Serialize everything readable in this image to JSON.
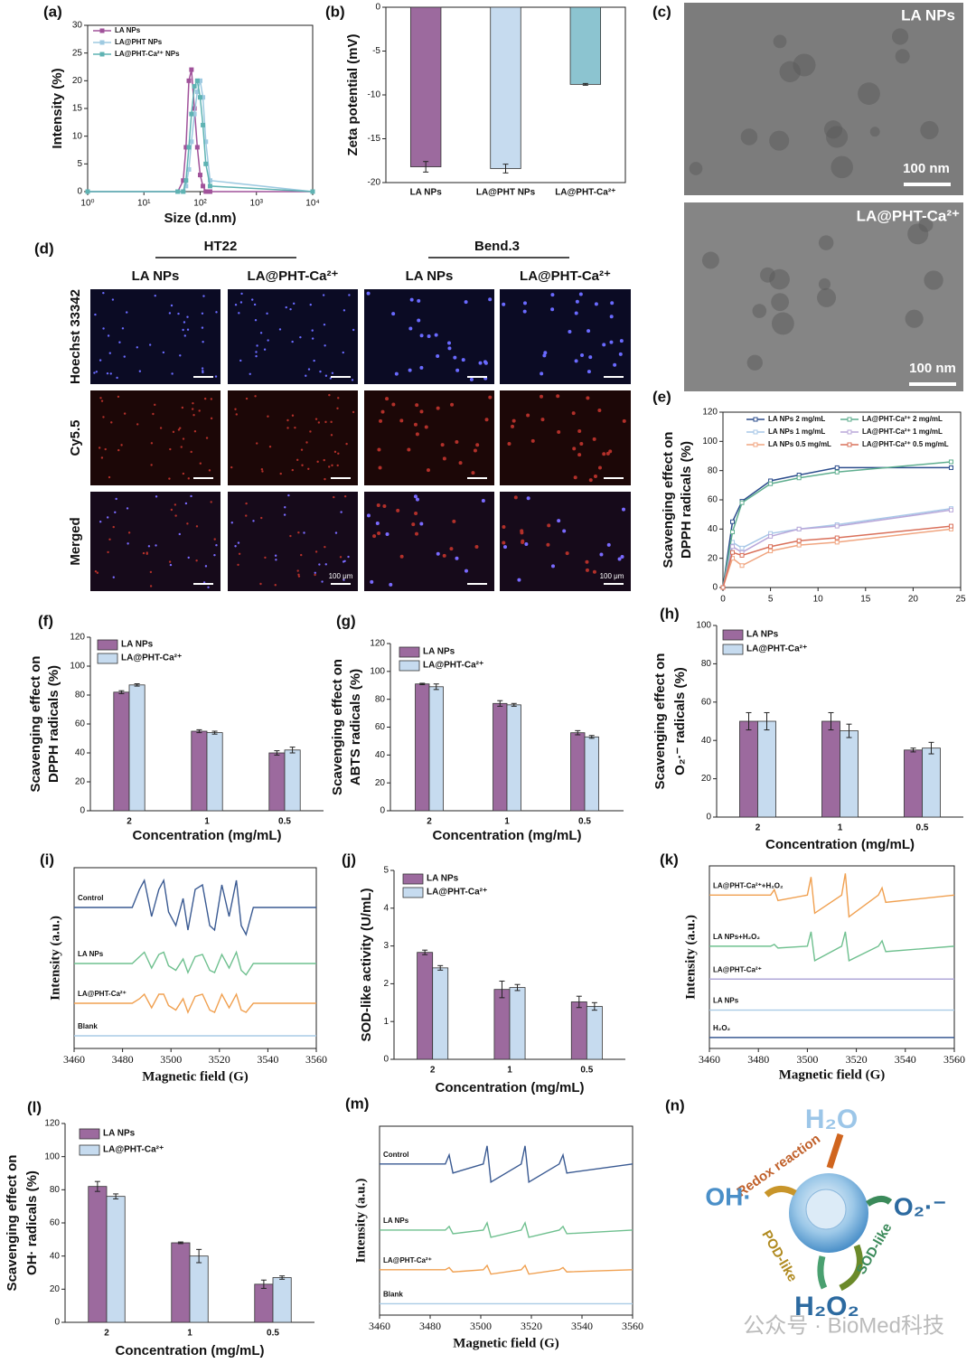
{
  "chart_data": [
    {
      "panel": "(a)",
      "type": "line",
      "xlabel": "Size (d.nm)",
      "ylabel": [
        "Intensity (%)"
      ],
      "xlog": true,
      "xlim": [
        1,
        10000
      ],
      "xticks": [
        {
          "value": 1,
          "label": "10⁰"
        },
        {
          "value": 10,
          "label": "10¹"
        },
        {
          "value": 100,
          "label": "10²"
        },
        {
          "value": 1000,
          "label": "10³"
        },
        {
          "value": 10000,
          "label": "10⁴"
        }
      ],
      "ylim": [
        0,
        30
      ],
      "yticks": [
        0,
        5,
        10,
        15,
        20,
        25,
        30
      ],
      "x": [
        1,
        40,
        50,
        56,
        63,
        70,
        79,
        89,
        100,
        112,
        126,
        150,
        10000
      ],
      "series": [
        {
          "name": "LA NPs",
          "color": "#a0529a",
          "values": [
            0,
            0,
            2,
            8,
            20,
            22,
            15,
            8,
            3,
            1,
            0,
            0,
            0
          ]
        },
        {
          "name": "LA@PHT NPs",
          "color": "#9ecae1",
          "values": [
            0,
            0,
            0,
            1,
            4,
            9,
            14,
            18,
            20,
            17,
            9,
            2,
            0
          ]
        },
        {
          "name": "LA@PHT-Ca²⁺ NPs",
          "color": "#5fb3b3",
          "values": [
            0,
            0,
            0,
            2,
            8,
            14,
            19,
            20,
            17,
            12,
            5,
            1,
            0
          ]
        }
      ]
    },
    {
      "panel": "(b)",
      "type": "bar",
      "ylabel": [
        "Zeta potential (mV)"
      ],
      "categories": [
        "LA NPs",
        "LA@PHT NPs",
        "LA@PHT-Ca²⁺"
      ],
      "values": [
        -18.2,
        -18.4,
        -8.8
      ],
      "errors": [
        0.6,
        0.5,
        0.1
      ],
      "colors": [
        "#9c6a9e",
        "#c6dbef",
        "#8cc4d0"
      ],
      "ylim": [
        -20,
        0
      ],
      "yticks": [
        0,
        -5,
        -10,
        -15,
        -20
      ]
    },
    {
      "panel": "(e)",
      "type": "line",
      "ylabel": [
        "Scavenging effect on",
        "DPPH radicals (%)"
      ],
      "xlim": [
        0,
        25
      ],
      "xticks": [
        0,
        5,
        10,
        15,
        20,
        25
      ],
      "ylim": [
        0,
        120
      ],
      "yticks": [
        0,
        20,
        40,
        60,
        80,
        100,
        120
      ],
      "x": [
        0,
        1,
        2,
        5,
        8,
        12,
        24
      ],
      "series": [
        {
          "name": "LA NPs 2 mg/mL",
          "color": "#2b4c8c",
          "values": [
            0,
            45,
            59,
            73,
            77,
            82,
            82
          ]
        },
        {
          "name": "LA NPs 1 mg/mL",
          "color": "#a7c7e7",
          "values": [
            0,
            31,
            27,
            37,
            40,
            43,
            54
          ]
        },
        {
          "name": "LA NPs 0.5 mg/mL",
          "color": "#f0a580",
          "values": [
            0,
            20,
            15,
            25,
            29,
            31,
            40
          ]
        },
        {
          "name": "LA@PHT-Ca²⁺ 2 mg/mL",
          "color": "#5fae8f",
          "values": [
            0,
            38,
            58,
            71,
            75,
            79,
            86
          ]
        },
        {
          "name": "LA@PHT-Ca²⁺ 1 mg/mL",
          "color": "#b9a7d9",
          "values": [
            0,
            28,
            24,
            35,
            40,
            42,
            53
          ]
        },
        {
          "name": "LA@PHT-Ca²⁺ 0.5 mg/mL",
          "color": "#d9705a",
          "values": [
            0,
            24,
            22,
            28,
            32,
            34,
            42
          ]
        }
      ]
    },
    {
      "panel": "(f)",
      "type": "bar",
      "xlabel": "Concentration (mg/mL)",
      "ylabel": [
        "Scavenging effect on",
        "DPPH radicals (%)"
      ],
      "categories": [
        "2",
        "1",
        "0.5"
      ],
      "ylim": [
        0,
        120
      ],
      "yticks": [
        0,
        20,
        40,
        60,
        80,
        100,
        120
      ],
      "series": [
        {
          "name": "LA NPs",
          "color": "#9c6a9e",
          "values": [
            82,
            55,
            40
          ],
          "errors": [
            1,
            1,
            1.5
          ]
        },
        {
          "name": "LA@PHT-Ca²⁺",
          "color": "#c6dbef",
          "values": [
            87,
            54,
            42
          ],
          "errors": [
            0.8,
            1,
            2
          ]
        }
      ]
    },
    {
      "panel": "(g)",
      "type": "bar",
      "xlabel": "Concentration (mg/mL)",
      "ylabel": [
        "Scavenging effect on",
        "ABTS radicals (%)"
      ],
      "categories": [
        "2",
        "1",
        "0.5"
      ],
      "ylim": [
        0,
        120
      ],
      "yticks": [
        0,
        20,
        40,
        60,
        80,
        100,
        120
      ],
      "series": [
        {
          "name": "LA NPs",
          "color": "#9c6a9e",
          "values": [
            91,
            77,
            56
          ],
          "errors": [
            0.5,
            2,
            1.5
          ]
        },
        {
          "name": "LA@PHT-Ca²⁺",
          "color": "#c6dbef",
          "values": [
            89,
            76,
            53
          ],
          "errors": [
            2,
            1,
            1
          ]
        }
      ]
    },
    {
      "panel": "(h)",
      "type": "bar",
      "xlabel": "Concentration (mg/mL)",
      "ylabel": [
        "Scavenging effect on",
        "O₂·⁻ radicals (%)"
      ],
      "categories": [
        "2",
        "1",
        "0.5"
      ],
      "ylim": [
        0,
        100
      ],
      "yticks": [
        0,
        20,
        40,
        60,
        80,
        100
      ],
      "series": [
        {
          "name": "LA NPs",
          "color": "#9c6a9e",
          "values": [
            50,
            50,
            35
          ],
          "errors": [
            4.5,
            4.5,
            1
          ]
        },
        {
          "name": "LA@PHT-Ca²⁺",
          "color": "#c6dbef",
          "values": [
            50,
            45,
            36
          ],
          "errors": [
            4.5,
            3.5,
            3
          ]
        }
      ]
    },
    {
      "panel": "(i)",
      "type": "spectrum",
      "xlabel": "Magnetic field (G)",
      "ylabel": [
        "Intensity (a.u.)"
      ],
      "xlim": [
        3460,
        3560
      ],
      "xticks": [
        3460,
        3480,
        3500,
        3520,
        3540,
        3560
      ],
      "series": [
        {
          "name": "Control",
          "color": "#3a5a92",
          "x": [
            3460,
            3484,
            3487,
            3489,
            3492,
            3495,
            3497,
            3499,
            3502,
            3505,
            3507,
            3510,
            3513,
            3516,
            3518,
            3521,
            3524,
            3527,
            3529,
            3531,
            3534,
            3560
          ],
          "values": [
            0,
            0,
            4,
            6,
            -2,
            4,
            6,
            -1,
            -4,
            2,
            -5,
            4,
            5,
            -4,
            -5,
            5,
            -2,
            6,
            -4,
            -6,
            0,
            0
          ]
        },
        {
          "name": "LA NPs",
          "color": "#6fc08f",
          "x": [
            3460,
            3484,
            3487,
            3489,
            3492,
            3495,
            3497,
            3499,
            3502,
            3505,
            3507,
            3510,
            3513,
            3516,
            3518,
            3521,
            3524,
            3527,
            3529,
            3531,
            3534,
            3560
          ],
          "values": [
            0,
            0,
            1.5,
            2.5,
            -1,
            2,
            2.5,
            -0.5,
            -1.5,
            1,
            -2,
            1.5,
            2,
            -1.5,
            -2,
            2,
            -1,
            2.5,
            -1.5,
            -2.5,
            0,
            0
          ]
        },
        {
          "name": "LA@PHT-Ca²⁺",
          "color": "#f0a050",
          "x": [
            3460,
            3484,
            3487,
            3489,
            3492,
            3495,
            3497,
            3499,
            3502,
            3505,
            3507,
            3510,
            3513,
            3516,
            3518,
            3521,
            3524,
            3527,
            3529,
            3531,
            3534,
            3560
          ],
          "values": [
            0,
            0,
            1,
            2,
            -1,
            2,
            2,
            -0.5,
            -1.5,
            1,
            -2,
            1.5,
            2,
            -1.5,
            -2,
            2,
            -1,
            2,
            -1.5,
            -2,
            0,
            0
          ]
        },
        {
          "name": "Blank",
          "color": "#a9cbe6",
          "x": [
            3460,
            3560
          ],
          "values": [
            0,
            0
          ]
        }
      ]
    },
    {
      "panel": "(j)",
      "type": "bar",
      "xlabel": "Concentration (mg/mL)",
      "ylabel": [
        "SOD-like activity (U/mL)"
      ],
      "categories": [
        "2",
        "1",
        "0.5"
      ],
      "ylim": [
        0,
        5
      ],
      "yticks": [
        0,
        1,
        2,
        3,
        4,
        5
      ],
      "series": [
        {
          "name": "LA NPs",
          "color": "#9c6a9e",
          "values": [
            2.83,
            1.85,
            1.52
          ],
          "errors": [
            0.06,
            0.22,
            0.15
          ]
        },
        {
          "name": "LA@PHT-Ca²⁺",
          "color": "#c6dbef",
          "values": [
            2.42,
            1.9,
            1.4
          ],
          "errors": [
            0.06,
            0.08,
            0.1
          ]
        }
      ]
    },
    {
      "panel": "(k)",
      "type": "spectrum",
      "xlabel": "Magnetic field (G)",
      "ylabel": [
        "Intensity (a.u.)"
      ],
      "xlim": [
        3460,
        3560
      ],
      "xticks": [
        3460,
        3480,
        3500,
        3520,
        3540,
        3560
      ],
      "series": [
        {
          "name": "LA@PHT-Ca²⁺+H₂O₂",
          "color": "#f0a050",
          "x": [
            3460,
            3485,
            3486.5,
            3488,
            3500,
            3501.5,
            3503,
            3514,
            3515.5,
            3517,
            3529,
            3530.5,
            3532,
            3560
          ],
          "values": [
            0,
            0,
            1.5,
            -1.5,
            0,
            5,
            -5,
            0,
            6,
            -6,
            0,
            2,
            -2,
            0
          ]
        },
        {
          "name": "LA NPs+H₂O₂",
          "color": "#6fc08f",
          "x": [
            3460,
            3485,
            3486.5,
            3488,
            3500,
            3501.5,
            3503,
            3514,
            3515.5,
            3517,
            3529,
            3530.5,
            3532,
            3560
          ],
          "values": [
            0,
            0,
            0.5,
            -0.5,
            0,
            4,
            -4,
            0,
            4,
            -4,
            0,
            1.5,
            -1.5,
            0
          ]
        },
        {
          "name": "LA@PHT-Ca²⁺",
          "color": "#b0a8d8",
          "x": [
            3460,
            3560
          ],
          "values": [
            0,
            0
          ]
        },
        {
          "name": "LA NPs",
          "color": "#a9cbe6",
          "x": [
            3460,
            3560
          ],
          "values": [
            0,
            0
          ]
        },
        {
          "name": "H₂O₂",
          "color": "#3a5a92",
          "x": [
            3460,
            3560
          ],
          "values": [
            0,
            0
          ]
        }
      ]
    },
    {
      "panel": "(l)",
      "type": "bar",
      "xlabel": "Concentration (mg/mL)",
      "ylabel": [
        "Scavenging effect on",
        "OH· radicals (%)"
      ],
      "categories": [
        "2",
        "1",
        "0.5"
      ],
      "ylim": [
        0,
        120
      ],
      "yticks": [
        0,
        20,
        40,
        60,
        80,
        100,
        120
      ],
      "series": [
        {
          "name": "LA NPs",
          "color": "#9c6a9e",
          "values": [
            82,
            48,
            23
          ],
          "errors": [
            3,
            0.5,
            2.5
          ]
        },
        {
          "name": "LA@PHT-Ca²⁺",
          "color": "#c6dbef",
          "values": [
            76,
            40,
            27
          ],
          "errors": [
            1.5,
            4,
            1
          ]
        }
      ]
    },
    {
      "panel": "(m)",
      "type": "spectrum",
      "xlabel": "Magnetic field (G)",
      "ylabel": [
        "Intensity (a.u.)"
      ],
      "xlim": [
        3460,
        3560
      ],
      "xticks": [
        3460,
        3480,
        3500,
        3520,
        3540,
        3560
      ],
      "series": [
        {
          "name": "Control",
          "color": "#3a5a92",
          "x": [
            3460,
            3486,
            3487.5,
            3489,
            3501,
            3502.5,
            3504,
            3516,
            3517.5,
            3519,
            3531,
            3532.5,
            3534,
            3560
          ],
          "values": [
            0,
            0,
            2.5,
            -2.5,
            0,
            5,
            -5,
            0,
            5,
            -5,
            0,
            2.5,
            -2.5,
            0
          ]
        },
        {
          "name": "LA NPs",
          "color": "#6fc08f",
          "x": [
            3460,
            3486,
            3487.5,
            3489,
            3501,
            3502.5,
            3504,
            3516,
            3517.5,
            3519,
            3531,
            3532.5,
            3534,
            3560
          ],
          "values": [
            0,
            0,
            1,
            -1,
            0,
            2,
            -2,
            0,
            2,
            -2,
            0,
            1,
            -1,
            0
          ]
        },
        {
          "name": "LA@PHT-Ca²⁺",
          "color": "#f0a050",
          "x": [
            3460,
            3486,
            3487.5,
            3489,
            3501,
            3502.5,
            3504,
            3516,
            3517.5,
            3519,
            3531,
            3532.5,
            3534,
            3560
          ],
          "values": [
            0,
            0,
            0.6,
            -0.6,
            0,
            1.2,
            -1.2,
            0,
            1.2,
            -1.2,
            0,
            0.6,
            -0.6,
            0
          ]
        },
        {
          "name": "Blank",
          "color": "#a9cbe6",
          "x": [
            3460,
            3560
          ],
          "values": [
            0,
            0
          ]
        }
      ]
    }
  ],
  "tem": {
    "panel": "(c)",
    "images": [
      {
        "label": "LA NPs",
        "scale": "100 nm"
      },
      {
        "label": "LA@PHT-Ca²⁺",
        "scale": "100 nm"
      }
    ]
  },
  "microscopy": {
    "panel": "(d)",
    "groups": [
      "HT22",
      "Bend.3"
    ],
    "columns": [
      "LA NPs",
      "LA@PHT-Ca²⁺",
      "LA NPs",
      "LA@PHT-Ca²⁺"
    ],
    "rows": [
      "Hoechst 33342",
      "Cy5.5",
      "Merged"
    ],
    "scale_labels": [
      "100 μm",
      "100 μm"
    ]
  },
  "schematic": {
    "panel": "(n)",
    "h2o": "H₂O",
    "redox": "Redox reaction",
    "oh": "OH·",
    "o2": "O₂·⁻",
    "pod": "POD-like",
    "sod": "SOD-like",
    "h2o2": "H₂O₂"
  },
  "watermark": "公众号 · BioMed科技"
}
